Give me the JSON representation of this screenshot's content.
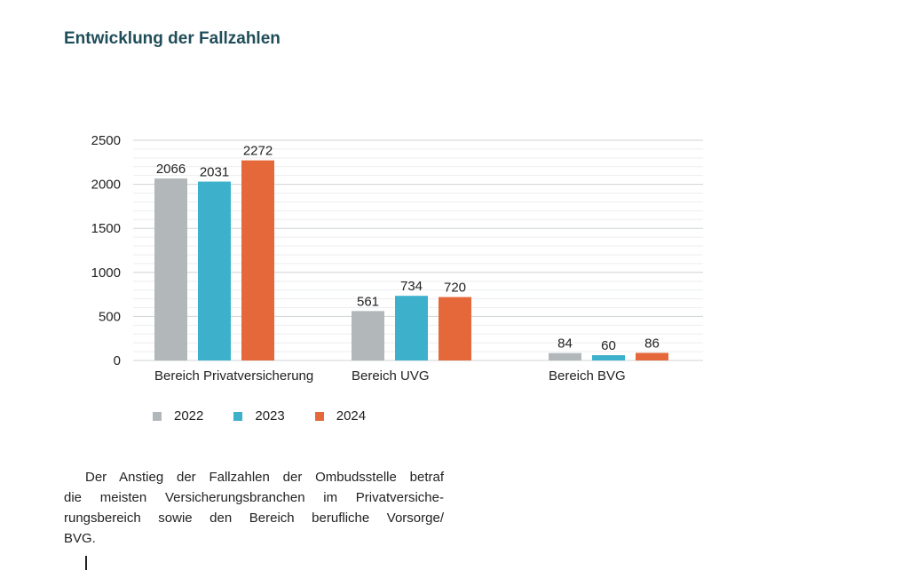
{
  "page": {
    "title": "Entwicklung der Fallzahlen"
  },
  "chart_data": {
    "type": "bar",
    "title": "",
    "xlabel": "",
    "ylabel": "",
    "categories": [
      "Bereich Privatversicherung",
      "Bereich UVG",
      "Bereich BVG"
    ],
    "series": [
      {
        "name": "2022",
        "values": [
          2066,
          561,
          84
        ],
        "color": "#b2b7ba"
      },
      {
        "name": "2023",
        "values": [
          2031,
          734,
          60
        ],
        "color": "#3db1cc"
      },
      {
        "name": "2024",
        "values": [
          2272,
          720,
          86
        ],
        "color": "#e5683a"
      }
    ],
    "ylim": [
      0,
      2500
    ],
    "yticks": [
      "0",
      "500",
      "1000",
      "1500",
      "2000",
      "2500"
    ],
    "grid": true,
    "data_labels": true,
    "legend_position": "bottom-left"
  },
  "body_text": {
    "lines": [
      "Der Anstieg der Fallzahlen der Ombudsstelle betraf",
      "die meisten Versicherungsbranchen im Privatversiche-",
      "rungsbereich sowie den Bereich berufliche Vorsorge/",
      "BVG."
    ]
  }
}
